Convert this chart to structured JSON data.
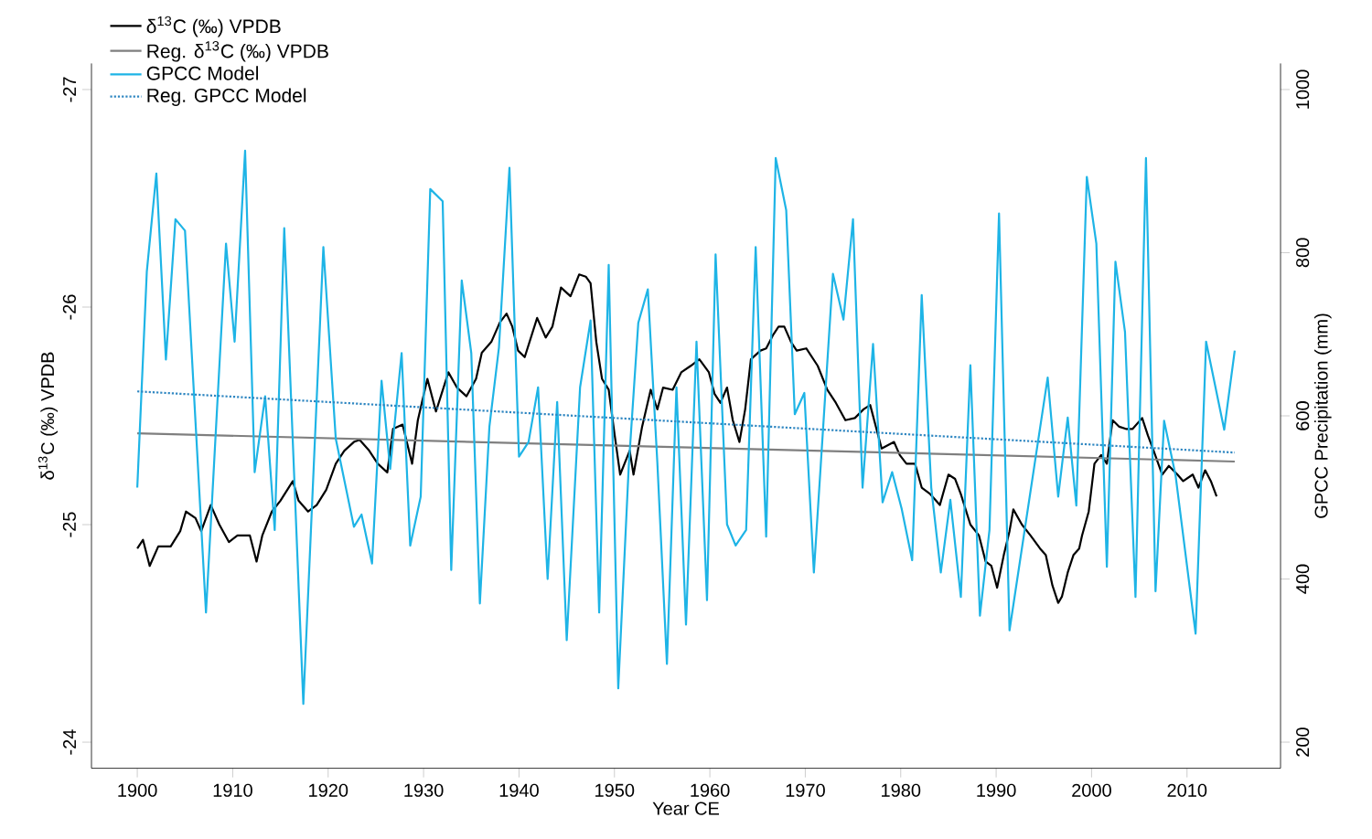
{
  "chart_data": {
    "type": "line",
    "xlabel": "Year CE",
    "ylabel": "δ$^{13}$C (‰) VPDB",
    "y2label": "GPCC Precipitation (mm)",
    "xlim": [
      1895.2,
      2019.8
    ],
    "xticks": [
      1900,
      1910,
      1920,
      1930,
      1940,
      1950,
      1960,
      1970,
      1980,
      1990,
      2000,
      2010
    ],
    "ylim": [
      -23.88,
      -27.12
    ],
    "yticks": [
      -27,
      -26,
      -25,
      -24
    ],
    "y2lim": [
      168,
      1032
    ],
    "y2ticks": [
      200,
      400,
      600,
      800,
      1000
    ],
    "legend": "top left",
    "series": [
      {
        "name": "δ$^{13}$C (‰) VPDB",
        "color": "#000000",
        "x": [
          1900.0,
          1900.6,
          1901.3,
          1902.2,
          1903.5,
          1904.5,
          1905.1,
          1906.1,
          1906.7,
          1907.7,
          1908.6,
          1909.6,
          1910.5,
          1911.8,
          1912.5,
          1913.1,
          1914.1,
          1915.0,
          1916.3,
          1916.9,
          1917.9,
          1918.8,
          1919.8,
          1920.8,
          1921.7,
          1922.7,
          1923.3,
          1924.3,
          1925.2,
          1926.2,
          1926.8,
          1927.8,
          1928.8,
          1929.4,
          1930.4,
          1931.3,
          1932.6,
          1933.5,
          1934.5,
          1935.5,
          1936.1,
          1937.1,
          1938.0,
          1938.7,
          1939.3,
          1939.9,
          1940.6,
          1941.9,
          1942.8,
          1943.5,
          1944.4,
          1945.4,
          1946.3,
          1947.0,
          1947.5,
          1948.1,
          1948.7,
          1949.4,
          1950.0,
          1950.6,
          1951.6,
          1952.0,
          1952.9,
          1953.8,
          1954.5,
          1955.1,
          1956.1,
          1957.0,
          1958.0,
          1958.9,
          1959.9,
          1960.5,
          1961.1,
          1961.8,
          1962.4,
          1963.1,
          1963.7,
          1964.3,
          1965.3,
          1965.9,
          1966.6,
          1967.2,
          1967.8,
          1968.5,
          1969.1,
          1970.1,
          1971.3,
          1972.3,
          1973.2,
          1974.2,
          1975.2,
          1976.1,
          1976.8,
          1977.4,
          1978.0,
          1979.3,
          1979.9,
          1980.6,
          1981.5,
          1982.2,
          1983.1,
          1984.1,
          1985.0,
          1985.7,
          1986.3,
          1987.3,
          1988.2,
          1988.9,
          1989.5,
          1990.1,
          1990.8,
          1991.4,
          1991.8,
          1992.7,
          1993.6,
          1994.6,
          1995.2,
          1995.9,
          1996.5,
          1996.9,
          1997.5,
          1998.1,
          1998.7,
          1999.0,
          1999.7,
          2000.3,
          2001.0,
          2001.6,
          2002.2,
          2002.9,
          2003.6,
          2004.3,
          2005.3,
          2005.9,
          2006.5,
          2007.4,
          2008.1,
          2009.0,
          2009.6,
          2010.6,
          2011.2,
          2011.9,
          2012.5,
          2013.1
        ],
        "values": [
          -24.89,
          -24.93,
          -24.81,
          -24.9,
          -24.9,
          -24.97,
          -25.06,
          -25.03,
          -24.97,
          -25.09,
          -25.0,
          -24.92,
          -24.95,
          -24.95,
          -24.83,
          -24.95,
          -25.06,
          -25.11,
          -25.2,
          -25.11,
          -25.06,
          -25.09,
          -25.16,
          -25.28,
          -25.34,
          -25.38,
          -25.39,
          -25.34,
          -25.28,
          -25.24,
          -25.44,
          -25.46,
          -25.28,
          -25.48,
          -25.67,
          -25.52,
          -25.7,
          -25.63,
          -25.59,
          -25.67,
          -25.79,
          -25.84,
          -25.93,
          -25.97,
          -25.91,
          -25.8,
          -25.77,
          -25.95,
          -25.86,
          -25.91,
          -26.09,
          -26.05,
          -26.15,
          -26.14,
          -26.11,
          -25.84,
          -25.67,
          -25.62,
          -25.42,
          -25.23,
          -25.34,
          -25.23,
          -25.45,
          -25.62,
          -25.53,
          -25.63,
          -25.62,
          -25.7,
          -25.73,
          -25.76,
          -25.7,
          -25.6,
          -25.56,
          -25.63,
          -25.48,
          -25.38,
          -25.53,
          -25.76,
          -25.8,
          -25.81,
          -25.87,
          -25.91,
          -25.91,
          -25.84,
          -25.8,
          -25.81,
          -25.73,
          -25.62,
          -25.56,
          -25.48,
          -25.49,
          -25.53,
          -25.55,
          -25.45,
          -25.35,
          -25.38,
          -25.32,
          -25.28,
          -25.28,
          -25.17,
          -25.14,
          -25.09,
          -25.23,
          -25.21,
          -25.14,
          -25.0,
          -24.95,
          -24.83,
          -24.81,
          -24.71,
          -24.86,
          -24.97,
          -25.07,
          -25.0,
          -24.95,
          -24.89,
          -24.86,
          -24.72,
          -24.64,
          -24.67,
          -24.78,
          -24.86,
          -24.89,
          -24.95,
          -25.06,
          -25.28,
          -25.32,
          -25.28,
          -25.48,
          -25.45,
          -25.44,
          -25.44,
          -25.49,
          -25.41,
          -25.34,
          -25.23,
          -25.27,
          -25.23,
          -25.2,
          -25.23,
          -25.17,
          -25.25,
          -25.2,
          -25.13
        ]
      },
      {
        "name": "Reg. δ$^{13}$C (‰) VPDB",
        "color": "#7f7f7f",
        "x": [
          1900,
          2015
        ],
        "values": [
          -25.42,
          -25.29
        ]
      },
      {
        "name": "GPCC Model",
        "color": "#1eb4e6",
        "axis": "y2",
        "x": [
          1900.0,
          1901.0,
          1902.0,
          1903.0,
          1904.0,
          1905.0,
          1907.2,
          1909.3,
          1910.2,
          1911.3,
          1912.3,
          1913.4,
          1914.4,
          1915.4,
          1917.4,
          1919.5,
          1920.8,
          1922.7,
          1923.5,
          1924.6,
          1925.6,
          1926.5,
          1927.7,
          1928.6,
          1929.7,
          1930.7,
          1932.0,
          1932.9,
          1934.0,
          1935.0,
          1935.9,
          1936.9,
          1937.9,
          1939.0,
          1940.0,
          1941.0,
          1942.0,
          1943.0,
          1944.0,
          1945.0,
          1946.4,
          1947.5,
          1948.4,
          1949.4,
          1950.4,
          1951.5,
          1952.5,
          1953.5,
          1954.5,
          1955.5,
          1956.5,
          1957.5,
          1958.6,
          1959.7,
          1960.6,
          1961.8,
          1962.7,
          1963.8,
          1964.8,
          1965.9,
          1966.9,
          1968.0,
          1968.9,
          1969.9,
          1970.9,
          1972.9,
          1974.0,
          1975.0,
          1976.0,
          1977.1,
          1978.1,
          1979.1,
          1980.1,
          1981.2,
          1982.2,
          1983.2,
          1984.2,
          1985.2,
          1986.3,
          1987.3,
          1988.3,
          1989.3,
          1990.3,
          1991.4,
          1995.4,
          1996.5,
          1997.5,
          1998.4,
          1999.5,
          2000.5,
          2001.6,
          2002.5,
          2003.5,
          2004.6,
          2005.7,
          2006.7,
          2007.6,
          2008.8,
          2010.9,
          2012.0,
          2013.9,
          2015.0
        ],
        "values": [
          512,
          777,
          897,
          669,
          841,
          827,
          359,
          811,
          691,
          925,
          531,
          624,
          460,
          830,
          247,
          807,
          572,
          464,
          479,
          419,
          643,
          535,
          677,
          441,
          501,
          878,
          863,
          411,
          766,
          677,
          370,
          587,
          684,
          904,
          550,
          568,
          635,
          400,
          617,
          325,
          635,
          717,
          359,
          785,
          266,
          538,
          714,
          755,
          542,
          296,
          635,
          344,
          691,
          374,
          798,
          467,
          441,
          460,
          807,
          452,
          916,
          852,
          602,
          628,
          408,
          774,
          718,
          841,
          512,
          688,
          494,
          531,
          486,
          423,
          748,
          512,
          408,
          497,
          378,
          662,
          355,
          460,
          848,
          337,
          647,
          501,
          598,
          490,
          893,
          811,
          415,
          789,
          703,
          378,
          916,
          385,
          594,
          527,
          333,
          691,
          583,
          680
        ]
      },
      {
        "name": "Reg. GPCC Model",
        "color": "#2e86c1",
        "axis": "y2",
        "line_style": "dotted",
        "x": [
          1900,
          2015
        ],
        "values": [
          630,
          555
        ]
      }
    ]
  }
}
